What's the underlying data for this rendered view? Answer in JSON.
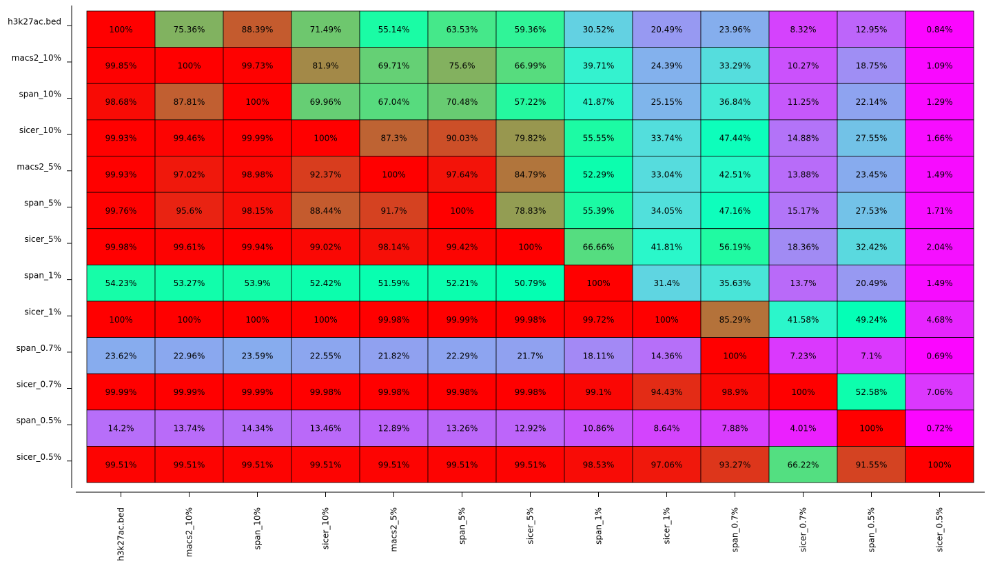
{
  "chart_data": {
    "type": "heatmap",
    "title": "",
    "xlabel": "",
    "ylabel": "",
    "rows": [
      "h3k27ac.bed",
      "macs2_10%",
      "span_10%",
      "sicer_10%",
      "macs2_5%",
      "span_5%",
      "sicer_5%",
      "span_1%",
      "sicer_1%",
      "span_0.7%",
      "sicer_0.7%",
      "span_0.5%",
      "sicer_0.5%"
    ],
    "columns": [
      "h3k27ac.bed",
      "macs2_10%",
      "span_10%",
      "sicer_10%",
      "macs2_5%",
      "span_5%",
      "sicer_5%",
      "span_1%",
      "sicer_1%",
      "span_0.7%",
      "sicer_0.7%",
      "span_0.5%",
      "sicer_0.5%"
    ],
    "values": [
      [
        100.0,
        75.36,
        88.39,
        71.49,
        55.14,
        63.53,
        59.36,
        30.52,
        20.49,
        23.96,
        8.32,
        12.95,
        0.84
      ],
      [
        99.85,
        100.0,
        99.73,
        81.9,
        69.71,
        75.6,
        66.99,
        39.71,
        24.39,
        33.29,
        10.27,
        18.75,
        1.09
      ],
      [
        98.68,
        87.81,
        100.0,
        69.96,
        67.04,
        70.48,
        57.22,
        41.87,
        25.15,
        36.84,
        11.25,
        22.14,
        1.29
      ],
      [
        99.93,
        99.46,
        99.99,
        100.0,
        87.3,
        90.03,
        79.82,
        55.55,
        33.74,
        47.44,
        14.88,
        27.55,
        1.66
      ],
      [
        99.93,
        97.02,
        98.98,
        92.37,
        100.0,
        97.64,
        84.79,
        52.29,
        33.04,
        42.51,
        13.88,
        23.45,
        1.49
      ],
      [
        99.76,
        95.6,
        98.15,
        88.44,
        91.7,
        100.0,
        78.83,
        55.39,
        34.05,
        47.16,
        15.17,
        27.53,
        1.71
      ],
      [
        99.98,
        99.61,
        99.94,
        99.02,
        98.14,
        99.42,
        100.0,
        66.66,
        41.81,
        56.19,
        18.36,
        32.42,
        2.04
      ],
      [
        54.23,
        53.27,
        53.9,
        52.42,
        51.59,
        52.21,
        50.79,
        100.0,
        31.4,
        35.63,
        13.7,
        20.49,
        1.49
      ],
      [
        100.0,
        100.0,
        100.0,
        100.0,
        99.98,
        99.99,
        99.98,
        99.72,
        100.0,
        85.29,
        41.58,
        49.24,
        4.68
      ],
      [
        23.62,
        22.96,
        23.59,
        22.55,
        21.82,
        22.29,
        21.7,
        18.11,
        14.36,
        100.0,
        7.23,
        7.1,
        0.69
      ],
      [
        99.99,
        99.99,
        99.99,
        99.98,
        99.98,
        99.98,
        99.98,
        99.1,
        94.43,
        98.9,
        100.0,
        52.58,
        7.06
      ],
      [
        14.2,
        13.74,
        14.34,
        13.46,
        12.89,
        13.26,
        12.92,
        10.86,
        8.64,
        7.88,
        4.01,
        100.0,
        0.72
      ],
      [
        99.51,
        99.51,
        99.51,
        99.51,
        99.51,
        99.51,
        99.51,
        98.53,
        97.06,
        93.27,
        66.22,
        91.55,
        100.0
      ]
    ],
    "value_suffix": "%",
    "colormap": "rainbow",
    "color_range": [
      0,
      100
    ],
    "grid": false,
    "legend": "none"
  }
}
